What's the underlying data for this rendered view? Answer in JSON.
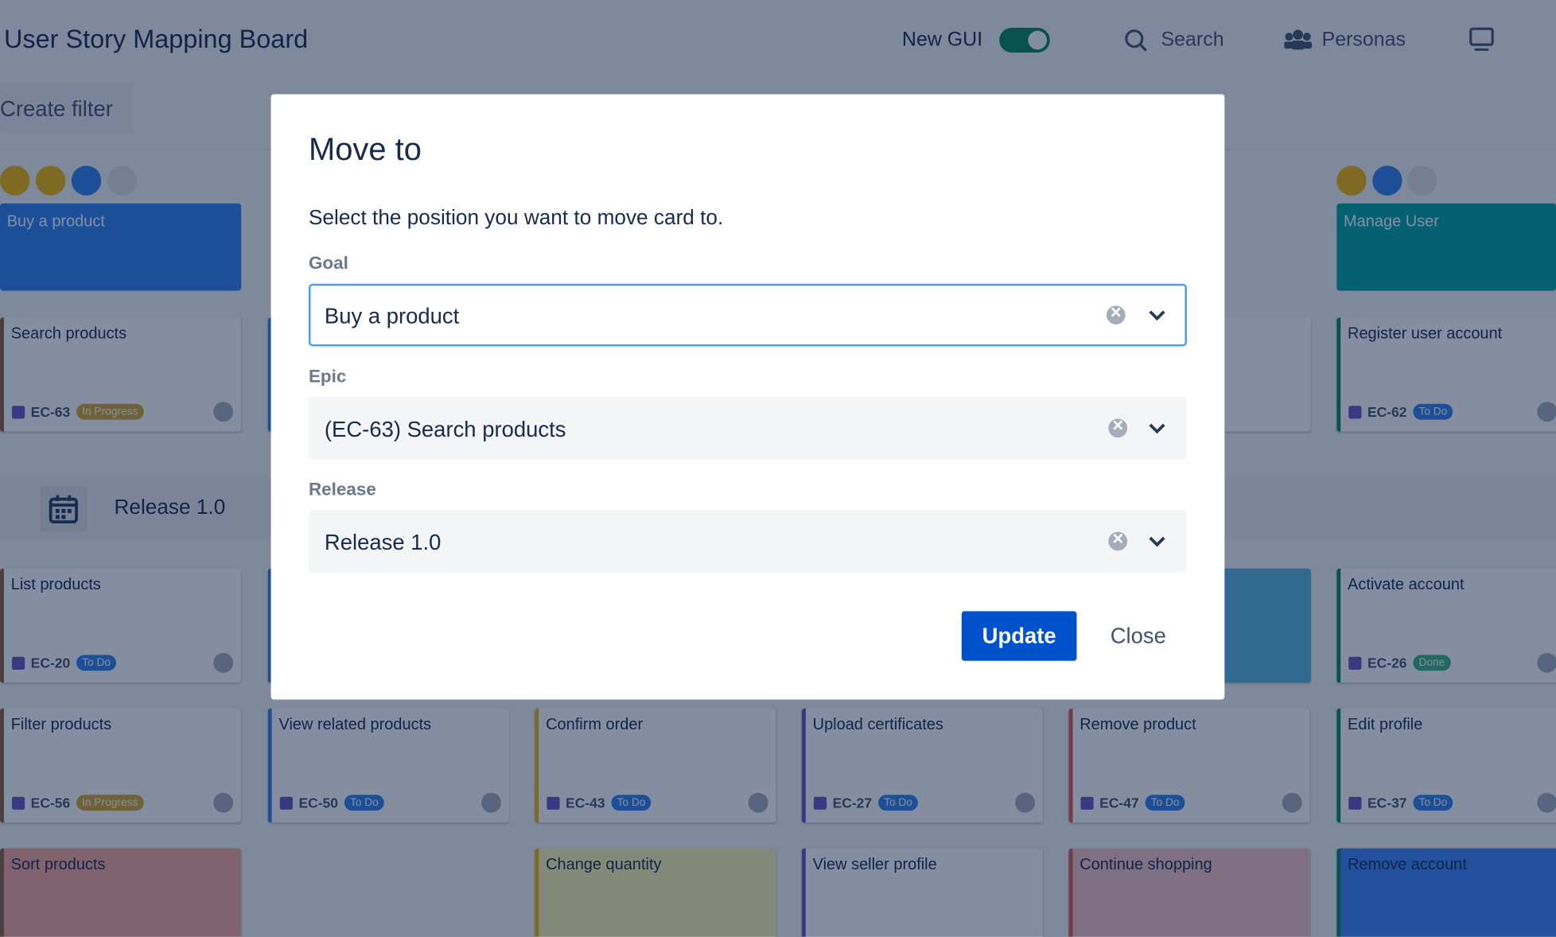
{
  "header": {
    "title": "User Story Mapping Board",
    "toggle_label": "New GUI",
    "search": "Search",
    "personas": "Personas"
  },
  "toolbar": {
    "create_filter": "Create filter"
  },
  "goals": [
    "Buy a product",
    "Manage User"
  ],
  "release": {
    "name": "Release 1.0"
  },
  "cards": [
    {
      "title": "Search products",
      "key": "EC-63",
      "status": "In Progress"
    },
    {
      "title": "Register user account",
      "key": "EC-62",
      "status": "To Do"
    },
    {
      "title": "List products",
      "key": "EC-20",
      "status": "To Do"
    },
    {
      "title": "Activate account",
      "key": "EC-26",
      "status": "Done"
    },
    {
      "title": "Filter products",
      "key": "EC-56",
      "status": "In Progress"
    },
    {
      "title": "View related products",
      "key": "EC-50",
      "status": "To Do"
    },
    {
      "title": "Confirm order",
      "key": "EC-43",
      "status": "To Do"
    },
    {
      "title": "Upload certificates",
      "key": "EC-27",
      "status": "To Do"
    },
    {
      "title": "Remove product",
      "key": "EC-47",
      "status": "To Do"
    },
    {
      "title": "Edit profile",
      "key": "EC-37",
      "status": "To Do"
    },
    {
      "title": "Sort products"
    },
    {
      "title": "Change quantity"
    },
    {
      "title": "View seller profile"
    },
    {
      "title": "Continue shopping"
    },
    {
      "title": "Remove account"
    }
  ],
  "dialog": {
    "title": "Move to",
    "instruction": "Select the position you want to move card to.",
    "fields": [
      {
        "label": "Goal",
        "value": "Buy a product"
      },
      {
        "label": "Epic",
        "value": "(EC-63) Search products"
      },
      {
        "label": "Release",
        "value": "Release 1.0"
      }
    ],
    "buttons": {
      "update": "Update",
      "close": "Close"
    }
  }
}
